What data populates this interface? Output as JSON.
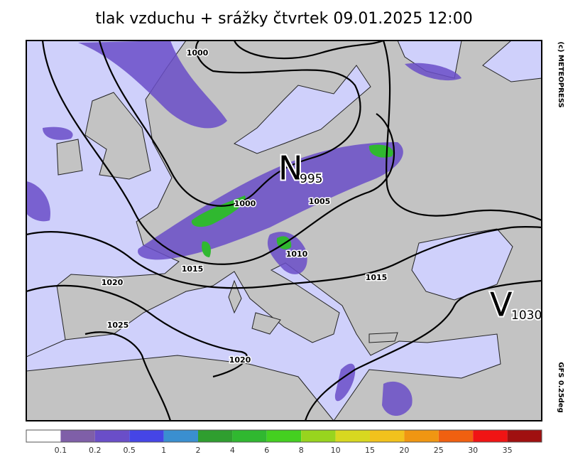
{
  "title": "tlak vzduchu + srážky čtvrtek 09.01.2025 12:00",
  "credit": "(c) METEOPRESS",
  "model": "GFS  0.25deg",
  "pressure_centers": [
    {
      "letter": "N",
      "value": "995"
    },
    {
      "letter": "V",
      "value": "1030"
    }
  ],
  "isobar_labels": [
    "1000",
    "1000",
    "1005",
    "1010",
    "1015",
    "1015",
    "1020",
    "1025",
    "1020"
  ],
  "legend": {
    "thresholds": [
      0.1,
      0.2,
      0.5,
      1,
      2,
      4,
      6,
      8,
      10,
      15,
      20,
      25,
      30,
      35
    ],
    "colors": [
      "#ffffff",
      "#7f5fa8",
      "#6a4ec8",
      "#4545e6",
      "#3a8fd0",
      "#2f9e2f",
      "#30b830",
      "#44d020",
      "#98d41e",
      "#d8d820",
      "#f2c21c",
      "#f09612",
      "#f06010",
      "#f01414",
      "#a01010"
    ]
  }
}
